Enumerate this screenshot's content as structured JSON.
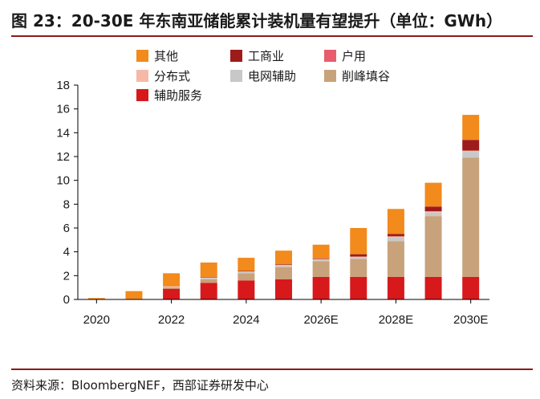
{
  "title": "图 23：20-30E 年东南亚储能累计装机量有望提升（单位：GWh）",
  "source": "资料来源：BloombergNEF，西部证券研发中心",
  "chart_data": {
    "type": "bar",
    "stacked": true,
    "categories": [
      "2020",
      "2021",
      "2022",
      "2023",
      "2024",
      "2025",
      "2026E",
      "2027E",
      "2028E",
      "2029E",
      "2030E"
    ],
    "x_tick_labels": [
      "2020",
      "2022",
      "2024",
      "2026E",
      "2028E",
      "2030E"
    ],
    "ylim": [
      0,
      18
    ],
    "y_ticks": [
      0,
      2,
      4,
      6,
      8,
      10,
      12,
      14,
      16,
      18
    ],
    "legend_position": "top",
    "series": [
      {
        "name": "辅助服务",
        "color": "#d7191c",
        "values": [
          0.02,
          0.05,
          0.9,
          1.4,
          1.6,
          1.7,
          1.9,
          1.9,
          1.9,
          1.9,
          1.9
        ]
      },
      {
        "name": "削峰填谷",
        "color": "#c8a27a",
        "values": [
          0.0,
          0.0,
          0.1,
          0.3,
          0.6,
          1.0,
          1.3,
          1.5,
          3.0,
          5.1,
          10.0
        ]
      },
      {
        "name": "电网辅助",
        "color": "#c8c8c8",
        "values": [
          0.0,
          0.0,
          0.05,
          0.1,
          0.1,
          0.1,
          0.1,
          0.1,
          0.3,
          0.3,
          0.5
        ]
      },
      {
        "name": "分布式",
        "color": "#f6b9a8",
        "values": [
          0.0,
          0.0,
          0.05,
          0.05,
          0.05,
          0.1,
          0.1,
          0.1,
          0.1,
          0.1,
          0.1
        ]
      },
      {
        "name": "户用",
        "color": "#e85c6e",
        "values": [
          0.0,
          0.0,
          0.0,
          0.0,
          0.0,
          0.0,
          0.0,
          0.0,
          0.0,
          0.0,
          0.0
        ]
      },
      {
        "name": "工商业",
        "color": "#9e1b1b",
        "values": [
          0.0,
          0.0,
          0.0,
          0.05,
          0.05,
          0.05,
          0.05,
          0.2,
          0.2,
          0.4,
          0.9
        ]
      },
      {
        "name": "其他",
        "color": "#f28a1c",
        "values": [
          0.1,
          0.65,
          1.1,
          1.2,
          1.1,
          1.15,
          1.15,
          2.2,
          2.1,
          2.0,
          2.1
        ]
      }
    ],
    "legend_order": [
      "其他",
      "工商业",
      "户用",
      "分布式",
      "电网辅助",
      "削峰填谷",
      "辅助服务"
    ]
  }
}
